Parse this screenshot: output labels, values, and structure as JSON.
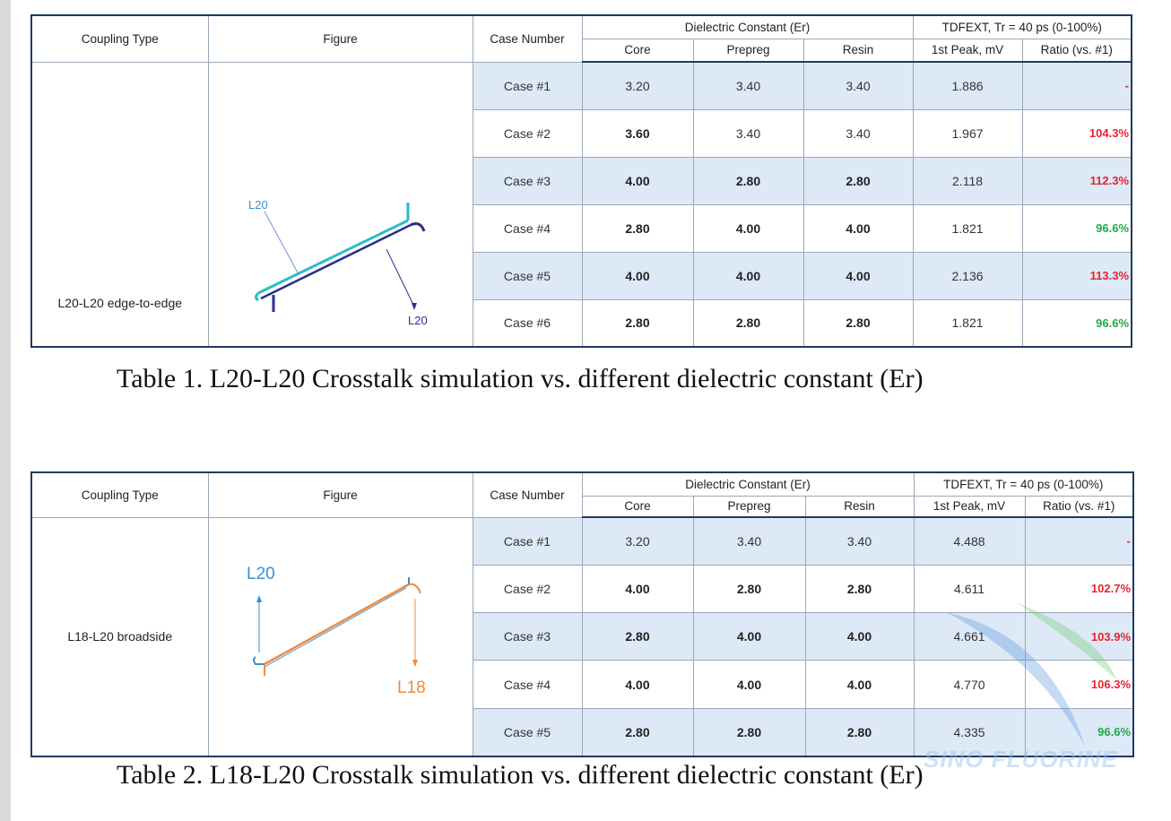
{
  "colors": {
    "border_dark": "#1f3a5f",
    "row_shade": "#dde9f6",
    "ratio_up": "#e8232f",
    "ratio_down": "#22a84a",
    "trace_teal": "#2bbcc7",
    "trace_navy": "#2a2f8f",
    "trace_blue": "#3b8fd1",
    "trace_orange": "#f08a3c"
  },
  "header": {
    "coupling_type": "Coupling Type",
    "figure": "Figure",
    "case_number": "Case Number",
    "dielectric": "Dielectric Constant (Er)",
    "core": "Core",
    "prepreg": "Prepreg",
    "resin": "Resin",
    "tdfext": "TDFEXT, Tr = 40 ps (0-100%)",
    "peak": "1st Peak, mV",
    "ratio": "Ratio (vs. #1)"
  },
  "table1": {
    "coupling": "L20-L20 edge-to-edge",
    "figure_labels": {
      "top": "L20",
      "bottom": "L20"
    },
    "caption": "Table 1.  L20-L20 Crosstalk simulation vs. different dielectric constant (Er)",
    "rows": [
      {
        "case": "Case #1",
        "core": "3.20",
        "prepreg": "3.40",
        "resin": "3.40",
        "peak": "1.886",
        "ratio": "-",
        "ratio_kind": "up",
        "bold": []
      },
      {
        "case": "Case #2",
        "core": "3.60",
        "prepreg": "3.40",
        "resin": "3.40",
        "peak": "1.967",
        "ratio": "104.3%",
        "ratio_kind": "up",
        "bold": [
          "core"
        ]
      },
      {
        "case": "Case #3",
        "core": "4.00",
        "prepreg": "2.80",
        "resin": "2.80",
        "peak": "2.118",
        "ratio": "112.3%",
        "ratio_kind": "up",
        "bold": [
          "core",
          "prepreg",
          "resin"
        ]
      },
      {
        "case": "Case #4",
        "core": "2.80",
        "prepreg": "4.00",
        "resin": "4.00",
        "peak": "1.821",
        "ratio": "96.6%",
        "ratio_kind": "down",
        "bold": [
          "core",
          "prepreg",
          "resin"
        ]
      },
      {
        "case": "Case #5",
        "core": "4.00",
        "prepreg": "4.00",
        "resin": "4.00",
        "peak": "2.136",
        "ratio": "113.3%",
        "ratio_kind": "up",
        "bold": [
          "core",
          "prepreg",
          "resin"
        ]
      },
      {
        "case": "Case #6",
        "core": "2.80",
        "prepreg": "2.80",
        "resin": "2.80",
        "peak": "1.821",
        "ratio": "96.6%",
        "ratio_kind": "down",
        "bold": [
          "core",
          "prepreg",
          "resin"
        ]
      }
    ]
  },
  "table2": {
    "coupling": "L18-L20 broadside",
    "figure_labels": {
      "top": "L20",
      "bottom": "L18"
    },
    "caption": "Table 2.  L18-L20 Crosstalk simulation vs. different dielectric constant (Er)",
    "rows": [
      {
        "case": "Case #1",
        "core": "3.20",
        "prepreg": "3.40",
        "resin": "3.40",
        "peak": "4.488",
        "ratio": "-",
        "ratio_kind": "up",
        "bold": []
      },
      {
        "case": "Case #2",
        "core": "4.00",
        "prepreg": "2.80",
        "resin": "2.80",
        "peak": "4.611",
        "ratio": "102.7%",
        "ratio_kind": "up",
        "bold": [
          "core",
          "prepreg",
          "resin"
        ]
      },
      {
        "case": "Case #3",
        "core": "2.80",
        "prepreg": "4.00",
        "resin": "4.00",
        "peak": "4.661",
        "ratio": "103.9%",
        "ratio_kind": "up",
        "bold": [
          "core",
          "prepreg",
          "resin"
        ]
      },
      {
        "case": "Case #4",
        "core": "4.00",
        "prepreg": "4.00",
        "resin": "4.00",
        "peak": "4.770",
        "ratio": "106.3%",
        "ratio_kind": "up",
        "bold": [
          "core",
          "prepreg",
          "resin"
        ]
      },
      {
        "case": "Case #5",
        "core": "2.80",
        "prepreg": "2.80",
        "resin": "2.80",
        "peak": "4.335",
        "ratio": "96.6%",
        "ratio_kind": "down",
        "bold": [
          "core",
          "prepreg",
          "resin"
        ]
      }
    ]
  },
  "watermark": "SINO FLUORINE"
}
